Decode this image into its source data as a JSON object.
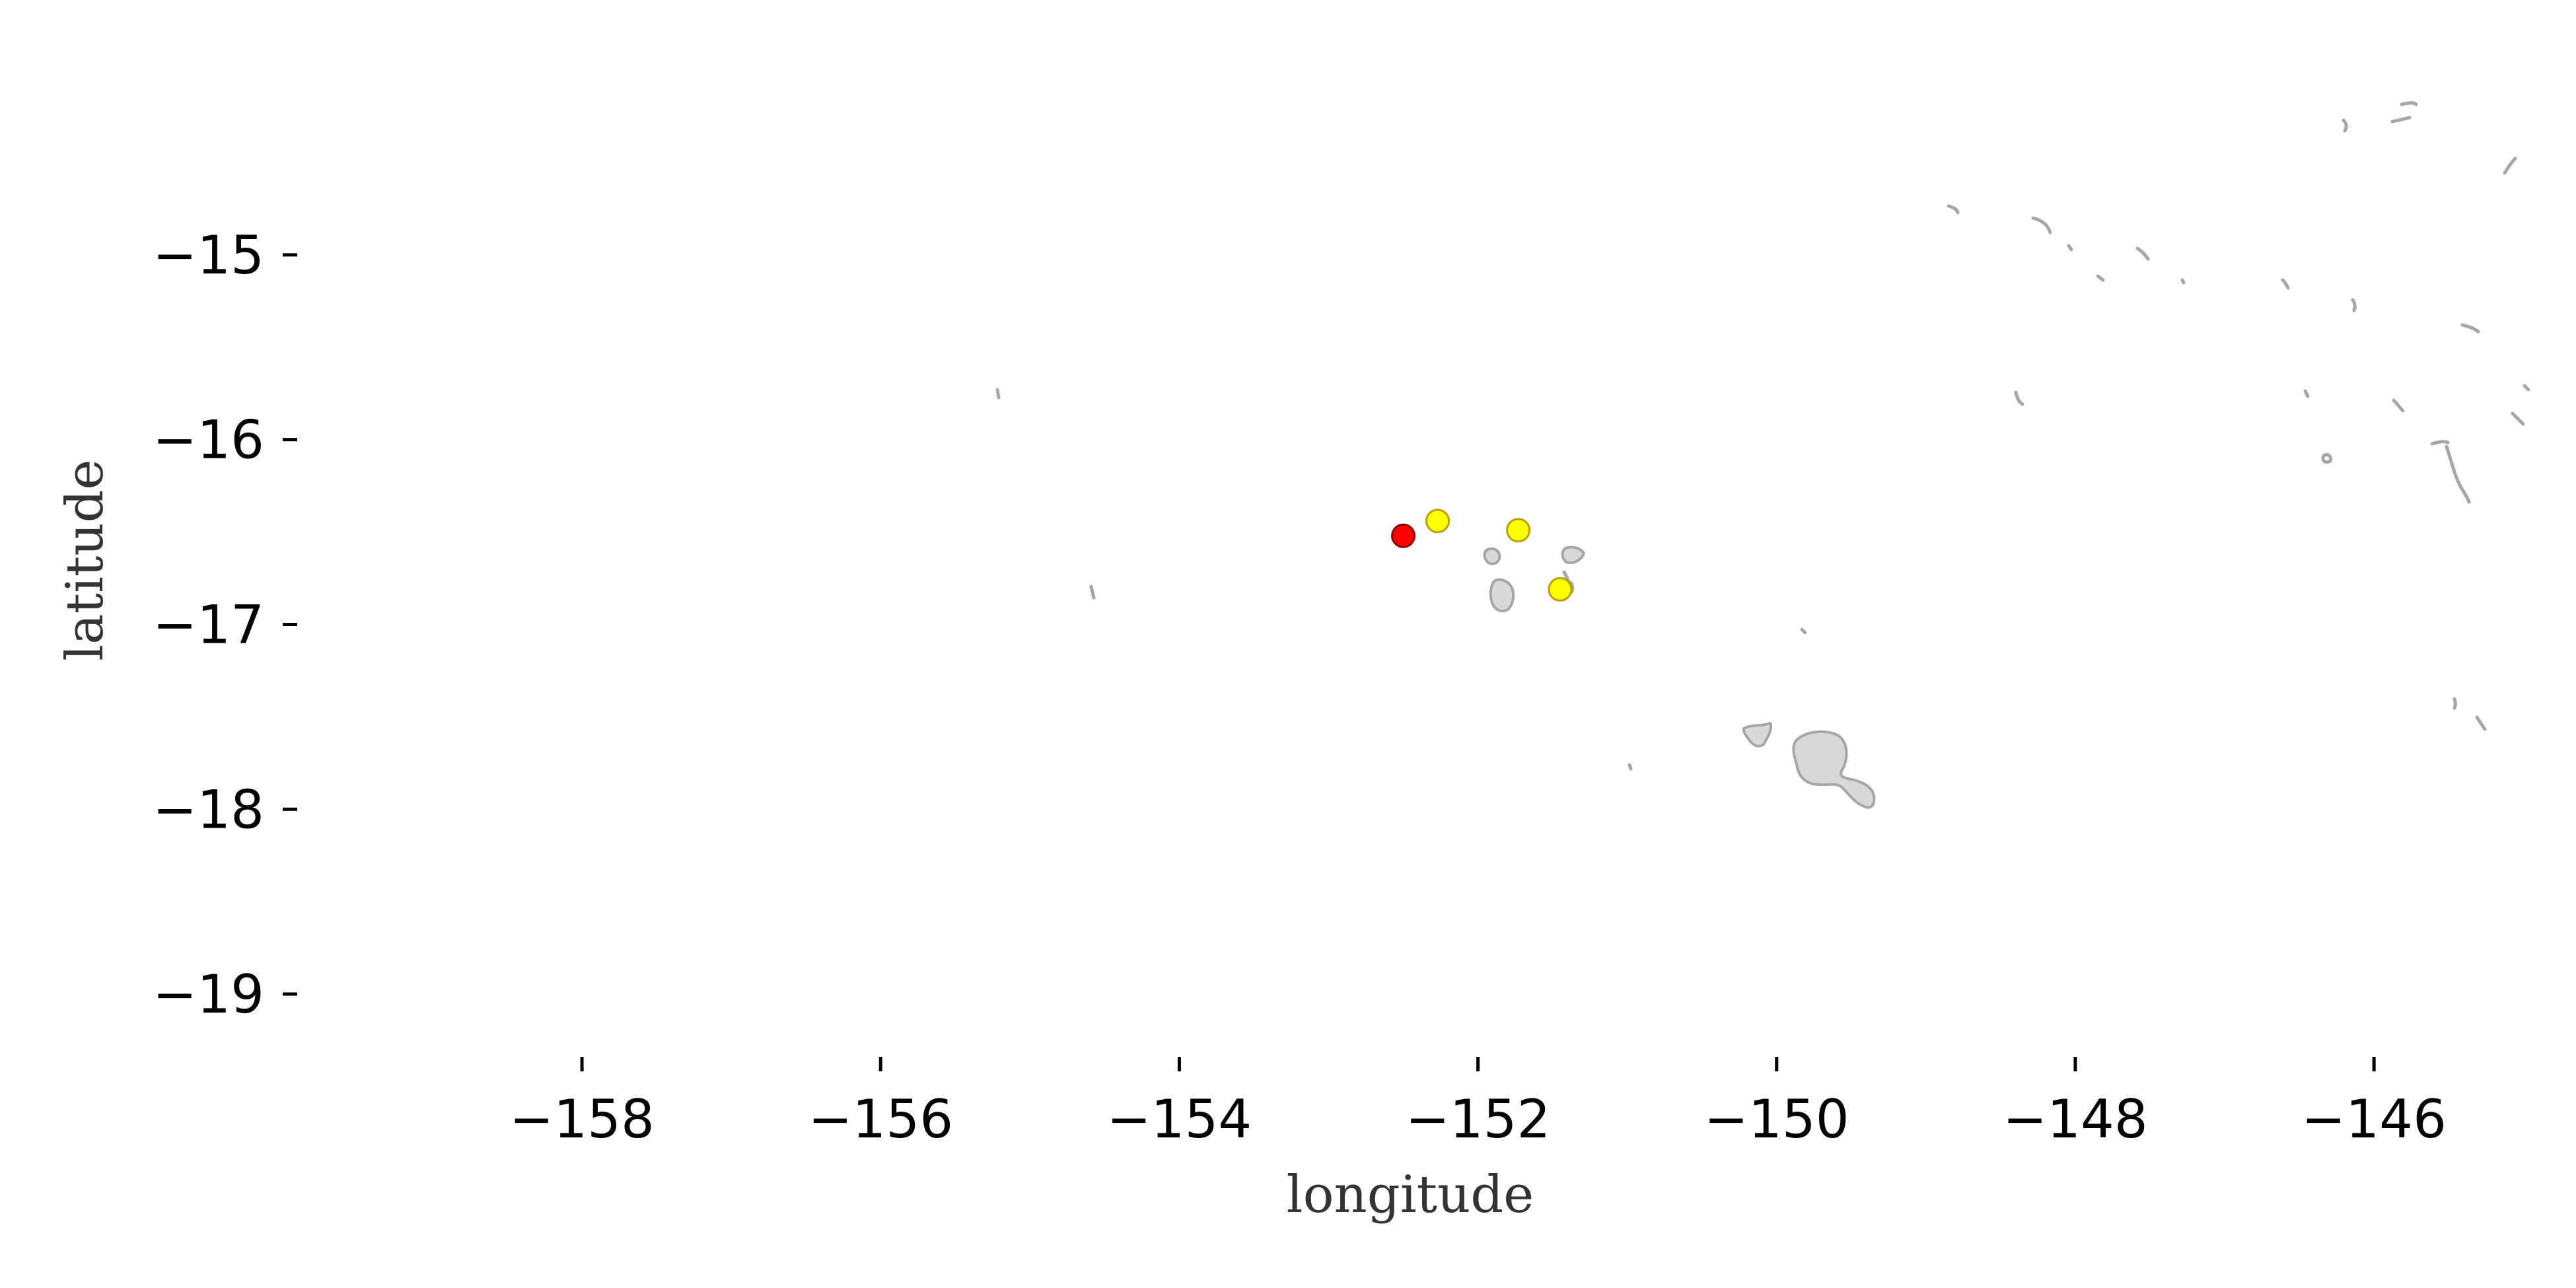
{
  "map": {
    "xlabel": "longitude",
    "ylabel": "latitude",
    "x_ticks": [
      -158,
      -156,
      -154,
      -152,
      -150,
      -148,
      -146
    ],
    "y_ticks": [
      -15,
      -16,
      -17,
      -18,
      -19
    ],
    "x_tick_labels": [
      "−158",
      "−156",
      "−154",
      "−152",
      "−150",
      "−148",
      "−146"
    ],
    "y_tick_labels": [
      "−15",
      "−16",
      "−17",
      "−18",
      "−19"
    ],
    "xlim": [
      -159.0,
      -145.2
    ],
    "ylim": [
      -19.25,
      -14.3
    ],
    "land_color": "#d9d9d9",
    "coast_color": "#a6a6a6",
    "points": [
      {
        "lon": -152.5,
        "lat": -16.52,
        "color": "#ff0000"
      },
      {
        "lon": -152.27,
        "lat": -16.44,
        "color": "#ffff00"
      },
      {
        "lon": -151.73,
        "lat": -16.49,
        "color": "#ffff00"
      },
      {
        "lon": -151.45,
        "lat": -16.81,
        "color": "#ffff00"
      }
    ]
  }
}
